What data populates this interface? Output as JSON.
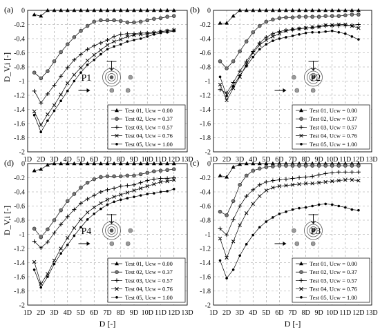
{
  "chart_data": [
    {
      "type": "line",
      "panel_label": "(a)",
      "position_label": "P1",
      "position_pattern": "left",
      "ylabel": "D_V,i [-]",
      "xlabel": "",
      "x": [
        "1D",
        "2D",
        "3D",
        "4D",
        "5D",
        "6D",
        "7D",
        "8D",
        "9D",
        "10D",
        "11D",
        "12D",
        "13D"
      ],
      "x_values": [
        1.5,
        2,
        2.5,
        3,
        3.5,
        4,
        4.5,
        5,
        5.5,
        6,
        6.5,
        7,
        7.5,
        8,
        8.5,
        9,
        9.5,
        10,
        10.5,
        11,
        11.5,
        12
      ],
      "xlim": [
        1,
        13
      ],
      "ylim": [
        -2,
        0
      ],
      "yticks": [
        0,
        -0.2,
        -0.4,
        -0.6,
        -0.8,
        -1,
        -1.2,
        -1.4,
        -1.6,
        -1.8,
        -2
      ],
      "grid": true,
      "legend_placement": "lower-right",
      "series": [
        {
          "name": "Test 01, Ucw = 0.00",
          "marker": "triangle",
          "values": [
            -0.06,
            -0.08,
            0,
            0,
            0,
            0,
            0,
            0,
            0,
            0,
            0,
            0,
            0,
            0,
            0,
            0,
            0,
            0,
            0,
            0,
            0,
            0
          ]
        },
        {
          "name": "Test 02, Ucw = 0.37",
          "marker": "circle",
          "values": [
            -0.88,
            -0.96,
            -0.86,
            -0.72,
            -0.59,
            -0.48,
            -0.38,
            -0.29,
            -0.22,
            -0.16,
            -0.14,
            -0.14,
            -0.14,
            -0.15,
            -0.17,
            -0.17,
            -0.16,
            -0.14,
            -0.12,
            -0.11,
            -0.09,
            -0.08
          ]
        },
        {
          "name": "Test 03, Ucw = 0.57",
          "marker": "plus",
          "values": [
            -1.14,
            -1.31,
            -1.18,
            -1.06,
            -0.93,
            -0.81,
            -0.7,
            -0.62,
            -0.55,
            -0.5,
            -0.46,
            -0.42,
            -0.37,
            -0.34,
            -0.33,
            -0.33,
            -0.32,
            -0.32,
            -0.31,
            -0.3,
            -0.29,
            -0.28
          ]
        },
        {
          "name": "Test 04, Ucw = 0.76",
          "marker": "x",
          "values": [
            -1.43,
            -1.62,
            -1.47,
            -1.34,
            -1.19,
            -1.03,
            -0.91,
            -0.81,
            -0.71,
            -0.63,
            -0.56,
            -0.49,
            -0.44,
            -0.41,
            -0.37,
            -0.35,
            -0.34,
            -0.33,
            -0.32,
            -0.3,
            -0.29,
            -0.28
          ]
        },
        {
          "name": "Test 05, Ucw = 1.00",
          "marker": "dot",
          "values": [
            -1.48,
            -1.72,
            -1.56,
            -1.42,
            -1.28,
            -1.14,
            -1.0,
            -0.88,
            -0.77,
            -0.7,
            -0.62,
            -0.55,
            -0.51,
            -0.48,
            -0.44,
            -0.42,
            -0.4,
            -0.37,
            -0.34,
            -0.32,
            -0.31,
            -0.29
          ]
        }
      ]
    },
    {
      "type": "line",
      "panel_label": "(b)",
      "position_label": "P2",
      "position_pattern": "right",
      "ylabel": "",
      "xlabel": "",
      "x": [
        "1D",
        "2D",
        "3D",
        "4D",
        "5D",
        "6D",
        "7D",
        "8D",
        "9D",
        "10D",
        "11D",
        "12D",
        "13D"
      ],
      "x_values": [
        1.5,
        2,
        2.5,
        3,
        3.5,
        4,
        4.5,
        5,
        5.5,
        6,
        6.5,
        7,
        7.5,
        8,
        8.5,
        9,
        9.5,
        10,
        10.5,
        11,
        11.5,
        12
      ],
      "xlim": [
        1,
        13
      ],
      "ylim": [
        -2,
        0
      ],
      "yticks": [
        0,
        -0.2,
        -0.4,
        -0.6,
        -0.8,
        -1,
        -1.2,
        -1.4,
        -1.6,
        -1.8,
        -2
      ],
      "grid": true,
      "legend_placement": "lower-right",
      "series": [
        {
          "name": "Test 01, Ucw = 0.00",
          "marker": "triangle",
          "values": [
            -0.18,
            -0.18,
            -0.08,
            0,
            0,
            0,
            0,
            0,
            0,
            0,
            0,
            0,
            0,
            0,
            0,
            0,
            0,
            0,
            0,
            0,
            0,
            0
          ]
        },
        {
          "name": "Test 02, Ucw = 0.37",
          "marker": "circle",
          "values": [
            -0.72,
            -0.82,
            -0.72,
            -0.58,
            -0.44,
            -0.31,
            -0.22,
            -0.16,
            -0.13,
            -0.11,
            -0.1,
            -0.1,
            -0.09,
            -0.09,
            -0.09,
            -0.09,
            -0.08,
            -0.08,
            -0.08,
            -0.07,
            -0.06,
            -0.06
          ]
        },
        {
          "name": "Test 03, Ucw = 0.57",
          "marker": "plus",
          "values": [
            -1.12,
            -1.17,
            -1.02,
            -0.86,
            -0.72,
            -0.58,
            -0.46,
            -0.38,
            -0.33,
            -0.3,
            -0.28,
            -0.27,
            -0.26,
            -0.25,
            -0.24,
            -0.23,
            -0.22,
            -0.22,
            -0.22,
            -0.22,
            -0.21,
            -0.2
          ]
        },
        {
          "name": "Test 04, Ucw = 0.76",
          "marker": "x",
          "values": [
            -1.05,
            -1.27,
            -1.1,
            -0.94,
            -0.76,
            -0.6,
            -0.49,
            -0.42,
            -0.37,
            -0.33,
            -0.29,
            -0.27,
            -0.26,
            -0.25,
            -0.24,
            -0.23,
            -0.21,
            -0.21,
            -0.2,
            -0.2,
            -0.22,
            -0.25
          ]
        },
        {
          "name": "Test 05, Ucw = 1.00",
          "marker": "dot",
          "values": [
            -0.94,
            -1.21,
            -1.07,
            -0.92,
            -0.79,
            -0.66,
            -0.55,
            -0.48,
            -0.43,
            -0.4,
            -0.38,
            -0.36,
            -0.34,
            -0.32,
            -0.31,
            -0.31,
            -0.3,
            -0.29,
            -0.31,
            -0.33,
            -0.37,
            -0.41
          ]
        }
      ]
    },
    {
      "type": "line",
      "panel_label": "(d)",
      "position_label": "P4",
      "position_pattern": "left",
      "ylabel": "D_V,i [-]",
      "xlabel": "D [-]",
      "x": [
        "1D",
        "2D",
        "3D",
        "4D",
        "5D",
        "6D",
        "7D",
        "8D",
        "9D",
        "10D",
        "11D",
        "12D",
        "13D"
      ],
      "x_values": [
        1.5,
        2,
        2.5,
        3,
        3.5,
        4,
        4.5,
        5,
        5.5,
        6,
        6.5,
        7,
        7.5,
        8,
        8.5,
        9,
        9.5,
        10,
        10.5,
        11,
        11.5,
        12
      ],
      "xlim": [
        1,
        13
      ],
      "ylim": [
        -2,
        0
      ],
      "yticks": [
        0,
        -0.2,
        -0.4,
        -0.6,
        -0.8,
        -1,
        -1.2,
        -1.4,
        -1.6,
        -1.8,
        -2
      ],
      "grid": true,
      "legend_placement": "lower-right",
      "series": [
        {
          "name": "Test 01, Ucw = 0.00",
          "marker": "triangle",
          "values": [
            -0.1,
            -0.08,
            -0.02,
            0,
            0,
            0,
            0,
            0,
            0,
            0,
            0,
            0,
            0,
            0,
            0,
            0,
            0,
            0,
            0,
            0,
            0,
            0
          ]
        },
        {
          "name": "Test 02, Ucw = 0.37",
          "marker": "circle",
          "values": [
            -0.92,
            -1.04,
            -0.93,
            -0.8,
            -0.66,
            -0.53,
            -0.43,
            -0.34,
            -0.27,
            -0.22,
            -0.19,
            -0.18,
            -0.18,
            -0.18,
            -0.17,
            -0.17,
            -0.15,
            -0.13,
            -0.11,
            -0.1,
            -0.09,
            -0.08
          ]
        },
        {
          "name": "Test 03, Ucw = 0.57",
          "marker": "plus",
          "values": [
            -1.1,
            -1.19,
            -1.11,
            -0.98,
            -0.86,
            -0.75,
            -0.65,
            -0.56,
            -0.5,
            -0.45,
            -0.4,
            -0.37,
            -0.35,
            -0.32,
            -0.31,
            -0.3,
            -0.27,
            -0.24,
            -0.22,
            -0.21,
            -0.21,
            -0.2
          ]
        },
        {
          "name": "Test 04, Ucw = 0.76",
          "marker": "x",
          "values": [
            -1.39,
            -1.7,
            -1.56,
            -1.37,
            -1.2,
            -1.05,
            -0.91,
            -0.79,
            -0.69,
            -0.62,
            -0.56,
            -0.51,
            -0.47,
            -0.44,
            -0.41,
            -0.38,
            -0.35,
            -0.32,
            -0.29,
            -0.26,
            -0.25,
            -0.23
          ]
        },
        {
          "name": "Test 05, Ucw = 1.00",
          "marker": "dot",
          "values": [
            -1.5,
            -1.75,
            -1.6,
            -1.42,
            -1.27,
            -1.15,
            -1.02,
            -0.9,
            -0.79,
            -0.71,
            -0.64,
            -0.58,
            -0.54,
            -0.51,
            -0.49,
            -0.47,
            -0.45,
            -0.43,
            -0.42,
            -0.4,
            -0.39,
            -0.36
          ]
        }
      ]
    },
    {
      "type": "line",
      "panel_label": "(c)",
      "position_label": "P3",
      "position_pattern": "right",
      "ylabel": "",
      "xlabel": "D [-]",
      "x": [
        "1D",
        "2D",
        "3D",
        "4D",
        "5D",
        "6D",
        "7D",
        "8D",
        "9D",
        "10D",
        "11D",
        "12D",
        "13D"
      ],
      "x_values": [
        1.5,
        2,
        2.5,
        3,
        3.5,
        4,
        4.5,
        5,
        5.5,
        6,
        6.5,
        7,
        7.5,
        8,
        8.5,
        9,
        9.5,
        10,
        10.5,
        11,
        11.5,
        12
      ],
      "xlim": [
        1,
        13
      ],
      "ylim": [
        -2,
        0
      ],
      "yticks": [
        0,
        -0.2,
        -0.4,
        -0.6,
        -0.8,
        -1,
        -1.2,
        -1.4,
        -1.6,
        -1.8,
        -2
      ],
      "grid": true,
      "legend_placement": "lower-right",
      "series": [
        {
          "name": "Test 01, Ucw = 0.00",
          "marker": "triangle",
          "values": [
            -0.17,
            -0.19,
            -0.05,
            -0.01,
            0,
            0,
            0,
            0,
            0,
            0,
            0,
            0,
            0,
            0,
            0,
            0,
            0,
            0,
            0,
            0,
            0,
            0
          ]
        },
        {
          "name": "Test 02, Ucw = 0.37",
          "marker": "circle",
          "values": [
            -0.68,
            -0.73,
            -0.53,
            -0.3,
            -0.17,
            -0.1,
            -0.07,
            -0.05,
            -0.04,
            -0.03,
            -0.03,
            -0.03,
            -0.03,
            -0.03,
            -0.03,
            -0.03,
            -0.03,
            -0.03,
            -0.03,
            -0.03,
            -0.03,
            -0.03
          ]
        },
        {
          "name": "Test 03, Ucw = 0.57",
          "marker": "plus",
          "values": [
            -0.92,
            -1.01,
            -0.79,
            -0.6,
            -0.46,
            -0.37,
            -0.3,
            -0.26,
            -0.24,
            -0.23,
            -0.22,
            -0.21,
            -0.2,
            -0.19,
            -0.18,
            -0.16,
            -0.14,
            -0.13,
            -0.12,
            -0.12,
            -0.12,
            -0.12
          ]
        },
        {
          "name": "Test 04, Ucw = 0.76",
          "marker": "x",
          "values": [
            -1.06,
            -1.33,
            -1.1,
            -0.87,
            -0.7,
            -0.57,
            -0.46,
            -0.38,
            -0.34,
            -0.32,
            -0.31,
            -0.3,
            -0.29,
            -0.28,
            -0.28,
            -0.27,
            -0.26,
            -0.25,
            -0.24,
            -0.23,
            -0.23,
            -0.24
          ]
        },
        {
          "name": "Test 05, Ucw = 1.00",
          "marker": "dot",
          "values": [
            -1.37,
            -1.62,
            -1.5,
            -1.3,
            -1.14,
            -1.01,
            -0.9,
            -0.82,
            -0.76,
            -0.71,
            -0.68,
            -0.65,
            -0.63,
            -0.62,
            -0.6,
            -0.58,
            -0.57,
            -0.58,
            -0.6,
            -0.62,
            -0.65,
            -0.66
          ]
        }
      ]
    }
  ]
}
